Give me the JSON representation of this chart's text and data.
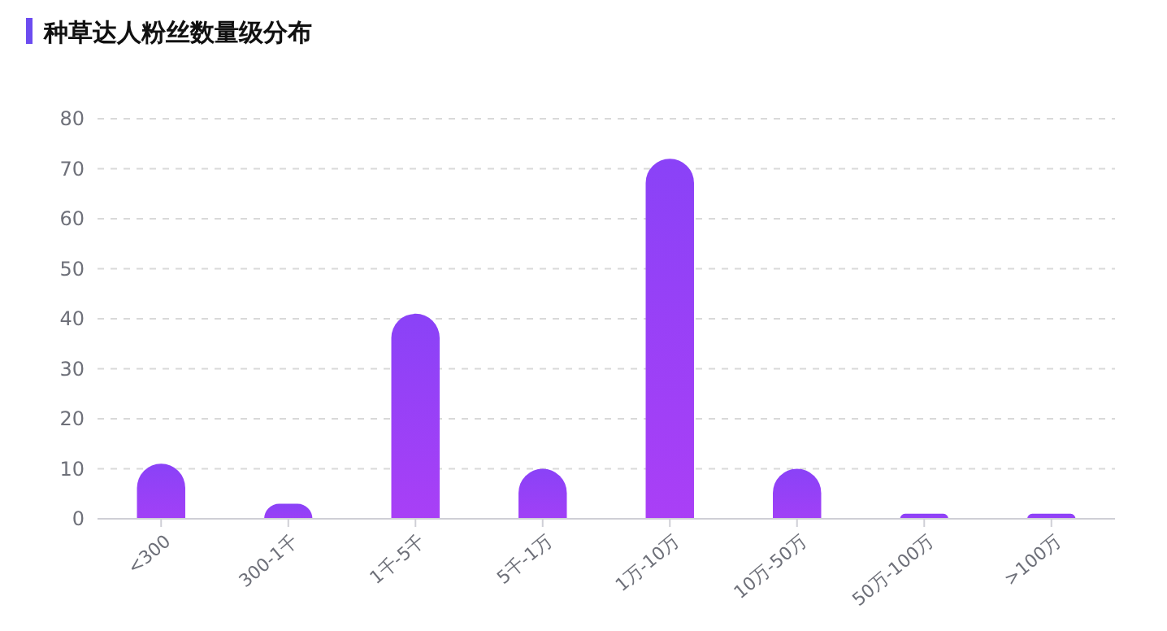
{
  "chart_data": {
    "type": "bar",
    "title": "种草达人粉丝数量级分布",
    "categories": [
      "<300",
      "300-1千",
      "1千-5千",
      "5千-1万",
      "1万-10万",
      "10万-50万",
      "50万-100万",
      ">100万"
    ],
    "values": [
      11,
      3,
      41,
      10,
      72,
      10,
      1,
      1
    ],
    "color": "#8a42f7",
    "ylim": [
      0,
      80
    ],
    "yticks": [
      0,
      10,
      20,
      30,
      40,
      50,
      60,
      70,
      80
    ],
    "grid": "y"
  }
}
